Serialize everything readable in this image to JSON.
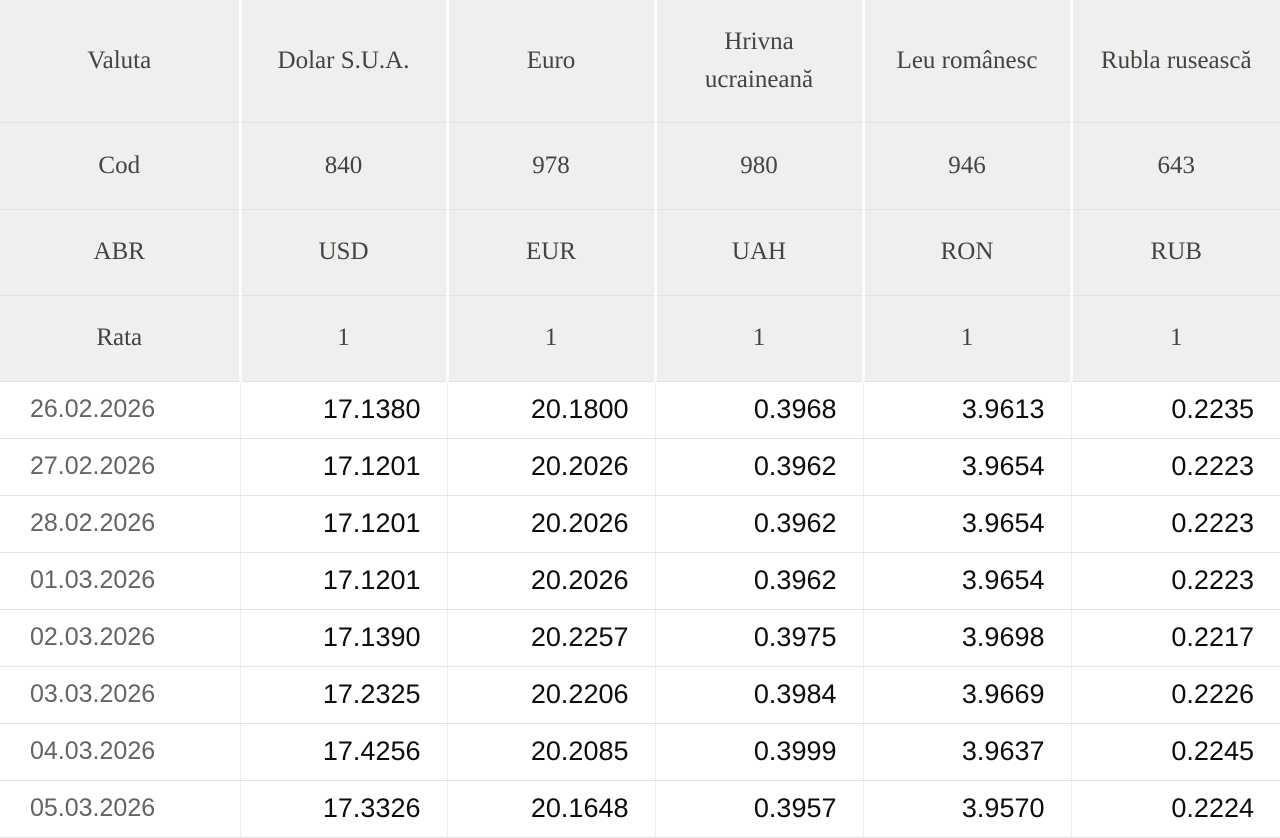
{
  "chart_data": {
    "type": "table",
    "header_rows": [
      {
        "label": "Valuta",
        "cells": [
          "Dolar S.U.A.",
          "Euro",
          "Hrivna ucraineană",
          "Leu românesc",
          "Rubla rusească"
        ]
      },
      {
        "label": "Cod",
        "cells": [
          "840",
          "978",
          "980",
          "946",
          "643"
        ]
      },
      {
        "label": "ABR",
        "cells": [
          "USD",
          "EUR",
          "UAH",
          "RON",
          "RUB"
        ]
      },
      {
        "label": "Rata",
        "cells": [
          "1",
          "1",
          "1",
          "1",
          "1"
        ]
      }
    ],
    "rows": [
      {
        "date": "26.02.2026",
        "values": [
          "17.1380",
          "20.1800",
          "0.3968",
          "3.9613",
          "0.2235"
        ]
      },
      {
        "date": "27.02.2026",
        "values": [
          "17.1201",
          "20.2026",
          "0.3962",
          "3.9654",
          "0.2223"
        ]
      },
      {
        "date": "28.02.2026",
        "values": [
          "17.1201",
          "20.2026",
          "0.3962",
          "3.9654",
          "0.2223"
        ]
      },
      {
        "date": "01.03.2026",
        "values": [
          "17.1201",
          "20.2026",
          "0.3962",
          "3.9654",
          "0.2223"
        ]
      },
      {
        "date": "02.03.2026",
        "values": [
          "17.1390",
          "20.2257",
          "0.3975",
          "3.9698",
          "0.2217"
        ]
      },
      {
        "date": "03.03.2026",
        "values": [
          "17.2325",
          "20.2206",
          "0.3984",
          "3.9669",
          "0.2226"
        ]
      },
      {
        "date": "04.03.2026",
        "values": [
          "17.4256",
          "20.2085",
          "0.3999",
          "3.9637",
          "0.2245"
        ]
      },
      {
        "date": "05.03.2026",
        "values": [
          "17.3326",
          "20.1648",
          "0.3957",
          "3.9570",
          "0.2224"
        ]
      }
    ],
    "layout_hints": {
      "grid": "on",
      "header_block_rows": 4,
      "data_rows": 8
    },
    "colors": {
      "header_bg": "#f0efed",
      "header_text": "#454341",
      "header_divider_white": "#fbfbf9",
      "header_divider_gray": "#e2e1df",
      "data_divider": "#e2e2e2",
      "date_text": "#646464",
      "value_text": "#0c0c0c",
      "data_bg": "#ffffff"
    }
  }
}
